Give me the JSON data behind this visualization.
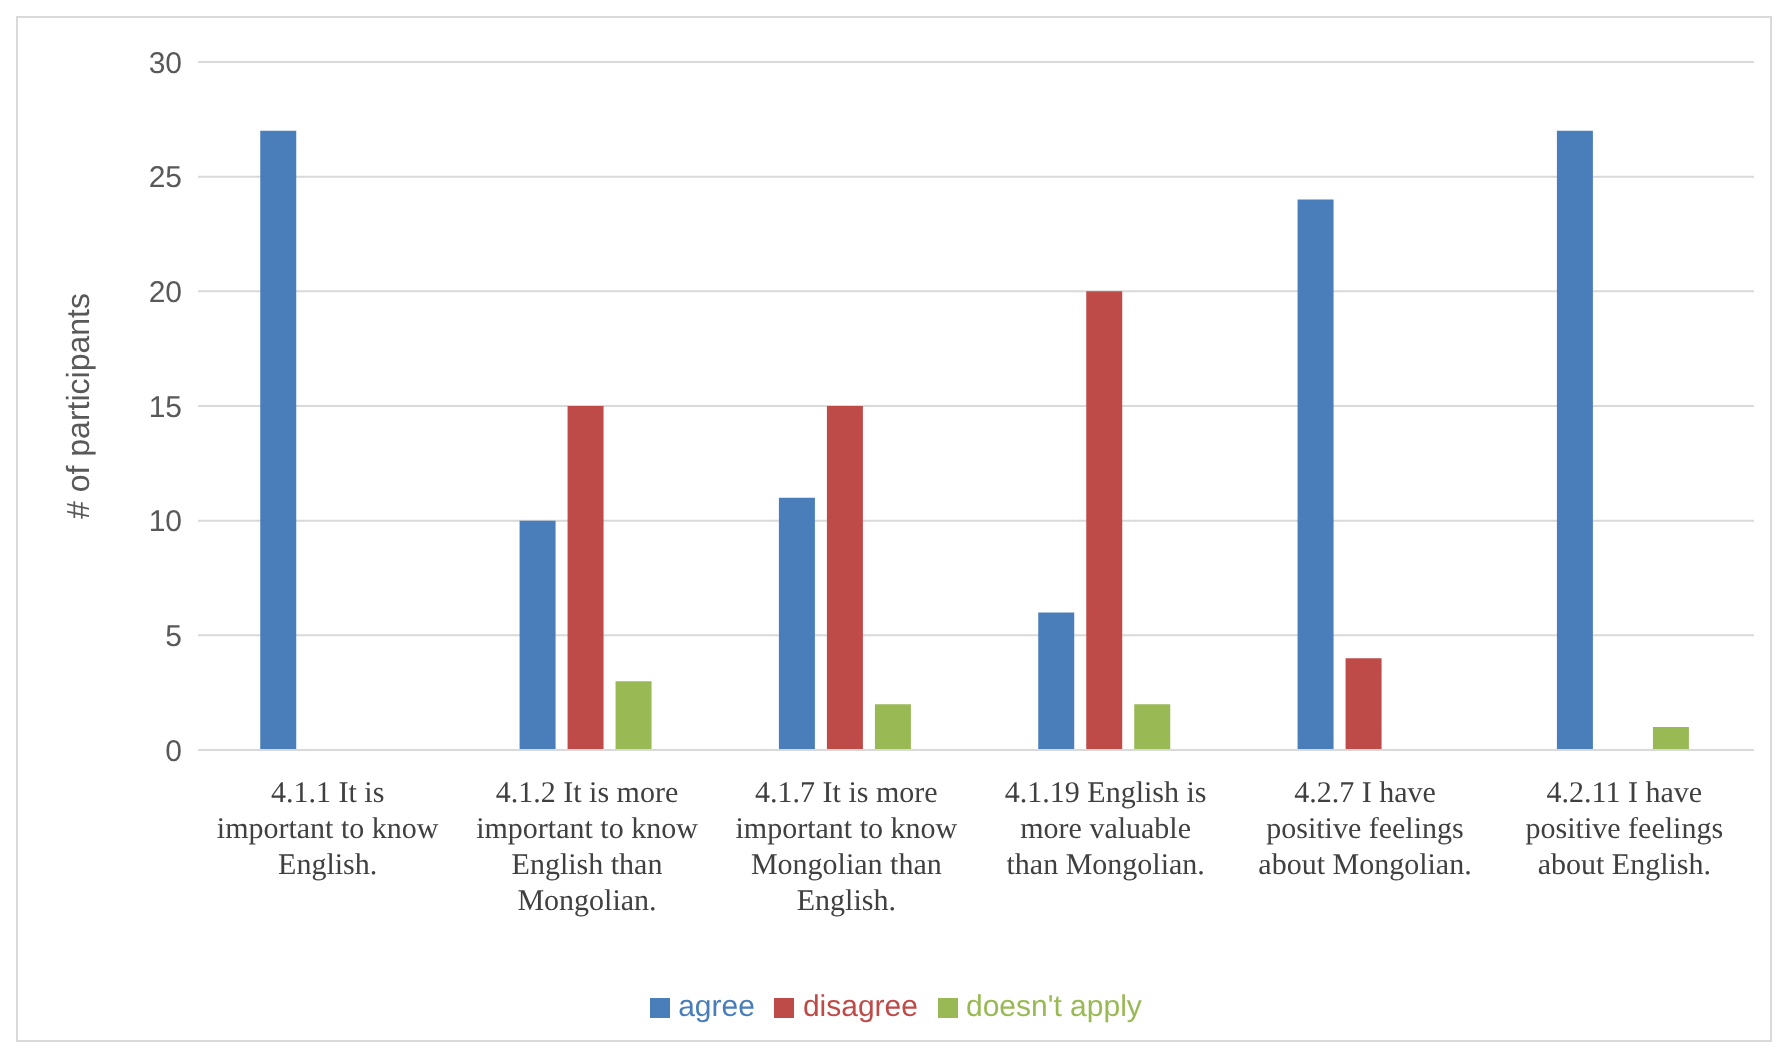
{
  "chart_data": {
    "type": "bar",
    "ylabel": "# of participants",
    "categories": [
      "4.1.1 It is important to know English.",
      "4.1.2 It is more important to know English than Mongolian.",
      "4.1.7 It is more important to know Mongolian than English.",
      "4.1.19 English is more valuable than Mongolian.",
      "4.2.7 I have positive feelings about Mongolian.",
      "4.2.11 I have positive feelings about English."
    ],
    "series": [
      {
        "name": "agree",
        "color": "#4a7ebb",
        "values": [
          27,
          10,
          11,
          6,
          24,
          27
        ]
      },
      {
        "name": "disagree",
        "color": "#be4b48",
        "values": [
          0,
          15,
          15,
          20,
          4,
          0
        ]
      },
      {
        "name": "doesn't apply",
        "color": "#98b954",
        "values": [
          0,
          3,
          2,
          2,
          0,
          1
        ]
      }
    ],
    "ylim": [
      0,
      30
    ],
    "yticks": [
      0,
      5,
      10,
      15,
      20,
      25,
      30
    ],
    "grid": "y",
    "legend": "bottom"
  }
}
